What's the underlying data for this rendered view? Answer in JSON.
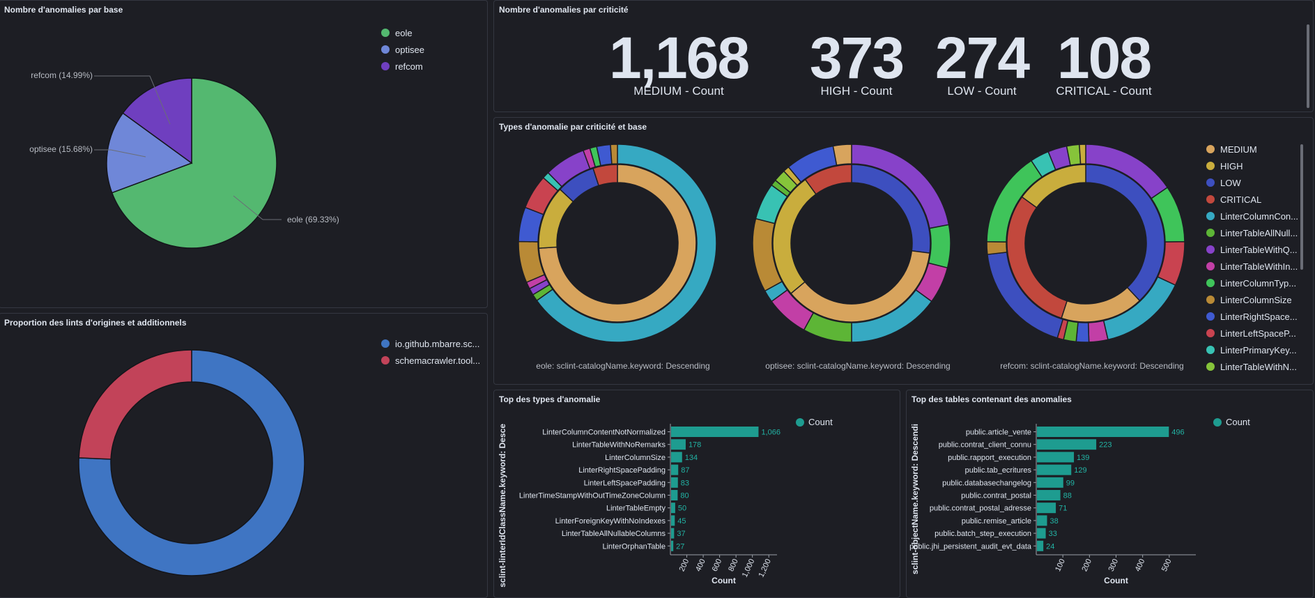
{
  "panels": {
    "by_base": {
      "title": "Nombre d'anomalies par base"
    },
    "by_criticity": {
      "title": "Nombre d'anomalies par criticité"
    },
    "types_by_crit_base": {
      "title": "Types d'anomalie par criticité et base"
    },
    "lint_origin": {
      "title": "Proportion des lints d'origines et additionnels"
    },
    "top_types": {
      "title": "Top des types d'anomalie"
    },
    "top_tables": {
      "title": "Top des tables contenant des anomalies"
    }
  },
  "metrics": [
    {
      "value": "1,168",
      "label": "MEDIUM - Count"
    },
    {
      "value": "373",
      "label": "HIGH - Count"
    },
    {
      "value": "274",
      "label": "LOW - Count"
    },
    {
      "value": "108",
      "label": "CRITICAL - Count"
    }
  ],
  "colors": {
    "eole": "#54b870",
    "optisee": "#6f87d8",
    "refcom": "#6f3fbf",
    "io": "#3f75c3",
    "schema": "#c24359",
    "teal": "#1e9c90",
    "medium": "#d8a45d",
    "high": "#c9ad3d",
    "low": "#3d4fbf",
    "critical": "#c2483d"
  },
  "legend_donut": [
    {
      "label": "MEDIUM",
      "color": "#d8a45d"
    },
    {
      "label": "HIGH",
      "color": "#c9ad3d"
    },
    {
      "label": "LOW",
      "color": "#3d4fbf"
    },
    {
      "label": "CRITICAL",
      "color": "#c2483d"
    },
    {
      "label": "LinterColumnCon...",
      "color": "#36a9c2"
    },
    {
      "label": "LinterTableAllNull...",
      "color": "#5db536"
    },
    {
      "label": "LinterTableWithQ...",
      "color": "#8742c9"
    },
    {
      "label": "LinterTableWithIn...",
      "color": "#c23fa6"
    },
    {
      "label": "LinterColumnTyp...",
      "color": "#3fc45a"
    },
    {
      "label": "LinterColumnSize",
      "color": "#b98a36"
    },
    {
      "label": "LinterRightSpace...",
      "color": "#3f5ad1"
    },
    {
      "label": "LinterLeftSpaceP...",
      "color": "#c94350"
    },
    {
      "label": "LinterPrimaryKey...",
      "color": "#38c2b3"
    },
    {
      "label": "LinterTableWithN...",
      "color": "#86c43a"
    }
  ],
  "donut_captions": [
    "eole: sclint-catalogName.keyword: Descending",
    "optisee: sclint-catalogName.keyword: Descending",
    "refcom: sclint-catalogName.keyword: Descending"
  ],
  "chart_data": [
    {
      "type": "pie",
      "title": "Nombre d'anomalies par base",
      "slices": [
        {
          "label": "eole",
          "value": 69.33,
          "color": "#54b870",
          "callout": "eole (69.33%)"
        },
        {
          "label": "optisee",
          "value": 15.68,
          "color": "#6f87d8",
          "callout": "optisee (15.68%)"
        },
        {
          "label": "refcom",
          "value": 14.99,
          "color": "#6f3fbf",
          "callout": "refcom (14.99%)"
        }
      ],
      "legend": [
        "eole",
        "optisee",
        "refcom"
      ]
    },
    {
      "type": "pie",
      "title": "Proportion des lints d'origines et additionnels",
      "donut": true,
      "slices": [
        {
          "label": "io.github.mbarre.sc...",
          "value": 75.7,
          "color": "#3f75c3"
        },
        {
          "label": "schemacrawler.tool...",
          "value": 24.3,
          "color": "#c24359"
        }
      ]
    },
    {
      "type": "pie",
      "title": "Types d'anomalie par criticité et base",
      "donuts": [
        {
          "caption": "eole: sclint-catalogName.keyword: Descending",
          "inner": [
            {
              "label": "MEDIUM",
              "value": 74,
              "color": "#d8a45d"
            },
            {
              "label": "HIGH",
              "value": 13,
              "color": "#c9ad3d"
            },
            {
              "label": "LOW",
              "value": 8,
              "color": "#3d4fbf"
            },
            {
              "label": "CRITICAL",
              "value": 5,
              "color": "#c2483d"
            }
          ],
          "outer": [
            {
              "value": 58,
              "color": "#36a9c2"
            },
            {
              "value": 1,
              "color": "#5db536"
            },
            {
              "value": 1,
              "color": "#8742c9"
            },
            {
              "value": 1,
              "color": "#c23fa6"
            },
            {
              "value": 6,
              "color": "#b98a36"
            },
            {
              "value": 5,
              "color": "#3f5ad1"
            },
            {
              "value": 5,
              "color": "#c94350"
            },
            {
              "value": 1,
              "color": "#38c2b3"
            },
            {
              "value": 6,
              "color": "#8742c9"
            },
            {
              "value": 1,
              "color": "#c23fa6"
            },
            {
              "value": 1,
              "color": "#3fc45a"
            },
            {
              "value": 2,
              "color": "#3f5ad1"
            },
            {
              "value": 1,
              "color": "#b98a36"
            }
          ]
        },
        {
          "caption": "optisee: sclint-catalogName.keyword: Descending",
          "inner": [
            {
              "label": "LOW",
              "value": 27,
              "color": "#3d4fbf"
            },
            {
              "label": "MEDIUM",
              "value": 37,
              "color": "#d8a45d"
            },
            {
              "label": "HIGH",
              "value": 26,
              "color": "#c9ad3d"
            },
            {
              "label": "CRITICAL",
              "value": 10,
              "color": "#c2483d"
            }
          ],
          "outer": [
            {
              "value": 22,
              "color": "#8742c9"
            },
            {
              "value": 7,
              "color": "#3fc45a"
            },
            {
              "value": 6,
              "color": "#c23fa6"
            },
            {
              "value": 15,
              "color": "#36a9c2"
            },
            {
              "value": 8,
              "color": "#5db536"
            },
            {
              "value": 7,
              "color": "#c23fa6"
            },
            {
              "value": 2,
              "color": "#36a9c2"
            },
            {
              "value": 12,
              "color": "#b98a36"
            },
            {
              "value": 6,
              "color": "#38c2b3"
            },
            {
              "value": 1,
              "color": "#5db536"
            },
            {
              "value": 2,
              "color": "#86c43a"
            },
            {
              "value": 1,
              "color": "#c9ad3d"
            },
            {
              "value": 8,
              "color": "#3f5ad1"
            },
            {
              "value": 3,
              "color": "#d8a45d"
            }
          ]
        },
        {
          "caption": "refcom: sclint-catalogName.keyword: Descending",
          "inner": [
            {
              "label": "LOW",
              "value": 38,
              "color": "#3d4fbf"
            },
            {
              "label": "MEDIUM",
              "value": 17,
              "color": "#d8a45d"
            },
            {
              "label": "CRITICAL",
              "value": 30,
              "color": "#c2483d"
            },
            {
              "label": "HIGH",
              "value": 15,
              "color": "#c9ad3d"
            }
          ],
          "outer": [
            {
              "value": 15,
              "color": "#8742c9"
            },
            {
              "value": 9,
              "color": "#3fc45a"
            },
            {
              "value": 7,
              "color": "#c94350"
            },
            {
              "value": 14,
              "color": "#36a9c2"
            },
            {
              "value": 3,
              "color": "#c23fa6"
            },
            {
              "value": 2,
              "color": "#3f5ad1"
            },
            {
              "value": 2,
              "color": "#5db536"
            },
            {
              "value": 1,
              "color": "#c94350"
            },
            {
              "value": 18,
              "color": "#3d4fbf"
            },
            {
              "value": 2,
              "color": "#b98a36"
            },
            {
              "value": 15,
              "color": "#3fc45a"
            },
            {
              "value": 3,
              "color": "#38c2b3"
            },
            {
              "value": 3,
              "color": "#8742c9"
            },
            {
              "value": 2,
              "color": "#86c43a"
            },
            {
              "value": 1,
              "color": "#c9ad3d"
            }
          ]
        }
      ]
    },
    {
      "type": "bar",
      "orientation": "horizontal",
      "title": "Top des types d'anomalie",
      "categories": [
        "LinterColumnContentNotNormalized",
        "LinterTableWithNoRemarks",
        "LinterColumnSize",
        "LinterRightSpacePadding",
        "LinterLeftSpacePadding",
        "LinterTimeStampWithOutTimeZoneColumn",
        "LinterTableEmpty",
        "LinterForeignKeyWithNoIndexes",
        "LinterTableAllNullableColumns",
        "LinterOrphanTable"
      ],
      "values": [
        1066,
        178,
        134,
        87,
        83,
        80,
        50,
        45,
        37,
        27
      ],
      "value_labels": [
        "1,066",
        "178",
        "134",
        "87",
        "83",
        "80",
        "50",
        "45",
        "37",
        "27"
      ],
      "xlabel": "Count",
      "ylabel": "sclint-linterIdClassName.keyword: Desce",
      "ticks": [
        "200",
        "400",
        "600",
        "800",
        "1,000",
        "1,200"
      ],
      "tick_values": [
        200,
        400,
        600,
        800,
        1000,
        1200
      ],
      "xlim": [
        0,
        1300
      ],
      "legend": "Count"
    },
    {
      "type": "bar",
      "orientation": "horizontal",
      "title": "Top des tables contenant des anomalies",
      "categories": [
        "public.article_vente",
        "public.contrat_client_connu",
        "public.rapport_execution",
        "public.tab_ecritures",
        "public.databasechangelog",
        "public.contrat_postal",
        "public.contrat_postal_adresse",
        "public.remise_article",
        "public.batch_step_execution",
        "public.jhi_persistent_audit_evt_data"
      ],
      "values": [
        496,
        223,
        139,
        129,
        99,
        88,
        71,
        38,
        33,
        24
      ],
      "value_labels": [
        "496",
        "223",
        "139",
        "129",
        "99",
        "88",
        "71",
        "38",
        "33",
        "24"
      ],
      "xlabel": "Count",
      "ylabel": "sclint-objectName.keyword: Descendi",
      "ticks": [
        "100",
        "200",
        "300",
        "400",
        "500"
      ],
      "tick_values": [
        100,
        200,
        300,
        400,
        500
      ],
      "xlim": [
        0,
        600
      ],
      "legend": "Count"
    }
  ]
}
